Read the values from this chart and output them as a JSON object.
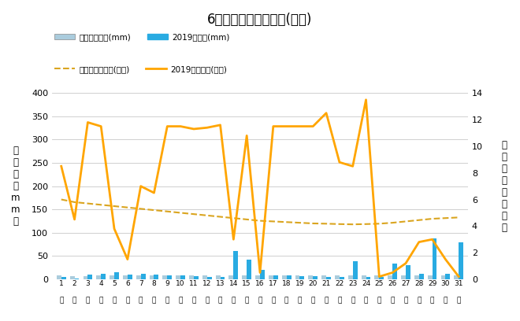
{
  "title": "6月降水量・日照時間(日別)",
  "days": [
    1,
    2,
    3,
    4,
    5,
    6,
    7,
    8,
    9,
    10,
    11,
    12,
    13,
    14,
    15,
    16,
    17,
    18,
    19,
    20,
    21,
    22,
    23,
    24,
    25,
    26,
    27,
    28,
    29,
    30,
    31
  ],
  "precip_avg": [
    8,
    7,
    7,
    8,
    9,
    9,
    9,
    9,
    9,
    9,
    9,
    8,
    8,
    8,
    8,
    8,
    8,
    8,
    8,
    8,
    8,
    8,
    8,
    9,
    9,
    9,
    9,
    9,
    9,
    9,
    9
  ],
  "precip_2019": [
    5,
    2,
    10,
    12,
    15,
    10,
    12,
    10,
    8,
    8,
    6,
    5,
    5,
    60,
    42,
    20,
    8,
    8,
    6,
    6,
    5,
    5,
    38,
    5,
    5,
    34,
    30,
    12,
    88,
    12,
    80
  ],
  "sunshine_avg": [
    6.0,
    5.8,
    5.7,
    5.6,
    5.5,
    5.4,
    5.3,
    5.2,
    5.1,
    5.0,
    4.9,
    4.8,
    4.7,
    4.6,
    4.5,
    4.4,
    4.35,
    4.3,
    4.25,
    4.2,
    4.18,
    4.15,
    4.13,
    4.15,
    4.18,
    4.25,
    4.35,
    4.45,
    4.55,
    4.6,
    4.65
  ],
  "sunshine_2019": [
    8.5,
    4.5,
    11.8,
    11.5,
    3.8,
    1.5,
    7.0,
    6.5,
    11.5,
    11.5,
    11.3,
    11.4,
    11.6,
    3.0,
    10.8,
    0.5,
    11.5,
    11.5,
    11.5,
    11.5,
    12.5,
    8.8,
    8.5,
    13.5,
    0.2,
    0.5,
    1.2,
    2.8,
    3.0,
    1.5,
    0.2
  ],
  "ylabel_left": "降\n水\n量\n（\nm\nm\n）",
  "ylabel_right": "日\n照\n時\n間\n（\n時\n間\n）",
  "ylim_left": [
    0,
    400
  ],
  "ylim_right": [
    0,
    14
  ],
  "yticks_left": [
    0,
    50,
    100,
    150,
    200,
    250,
    300,
    350,
    400
  ],
  "yticks_right": [
    0,
    2,
    4,
    6,
    8,
    10,
    12,
    14
  ],
  "bar_avg_color": "#aaccdd",
  "bar_2019_color": "#29abe2",
  "line_avg_color": "#daa520",
  "line_2019_color": "#ffa500",
  "legend1_label": "降水量平年値(mm)",
  "legend2_label": "2019降水量(mm)",
  "legend3_label": "日照時間平年値(時間)",
  "legend4_label": "2019日照時間(時間)",
  "bg_color": "#ffffff",
  "grid_color": "#c8c8c8"
}
